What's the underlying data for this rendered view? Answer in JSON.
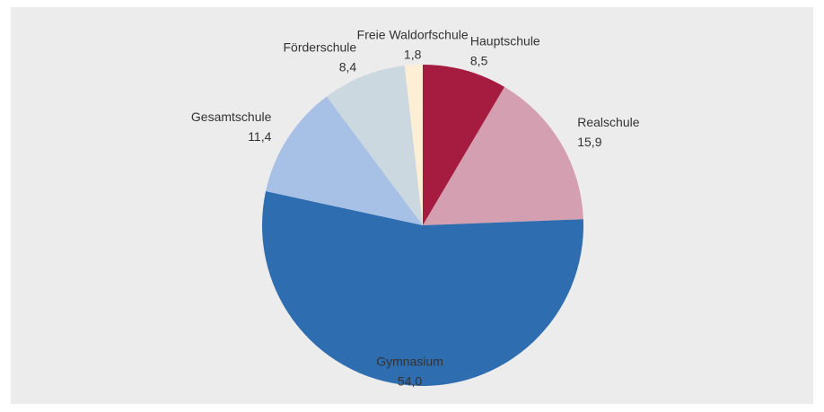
{
  "chart_data": {
    "type": "pie",
    "categories": [
      "Hauptschule",
      "Realschule",
      "Gymnasium",
      "Gesamtschule",
      "Förderschule",
      "Freie Waldorfschule"
    ],
    "values": [
      8.5,
      15.9,
      54.0,
      11.4,
      8.4,
      1.8
    ],
    "value_labels": [
      "8,5",
      "15,9",
      "54,0",
      "11,4",
      "8,4",
      "1,8"
    ],
    "colors": [
      "#a51c40",
      "#d39fb1",
      "#2e6db0",
      "#a7c0e6",
      "#ccd8e0",
      "#fdeed6"
    ]
  }
}
